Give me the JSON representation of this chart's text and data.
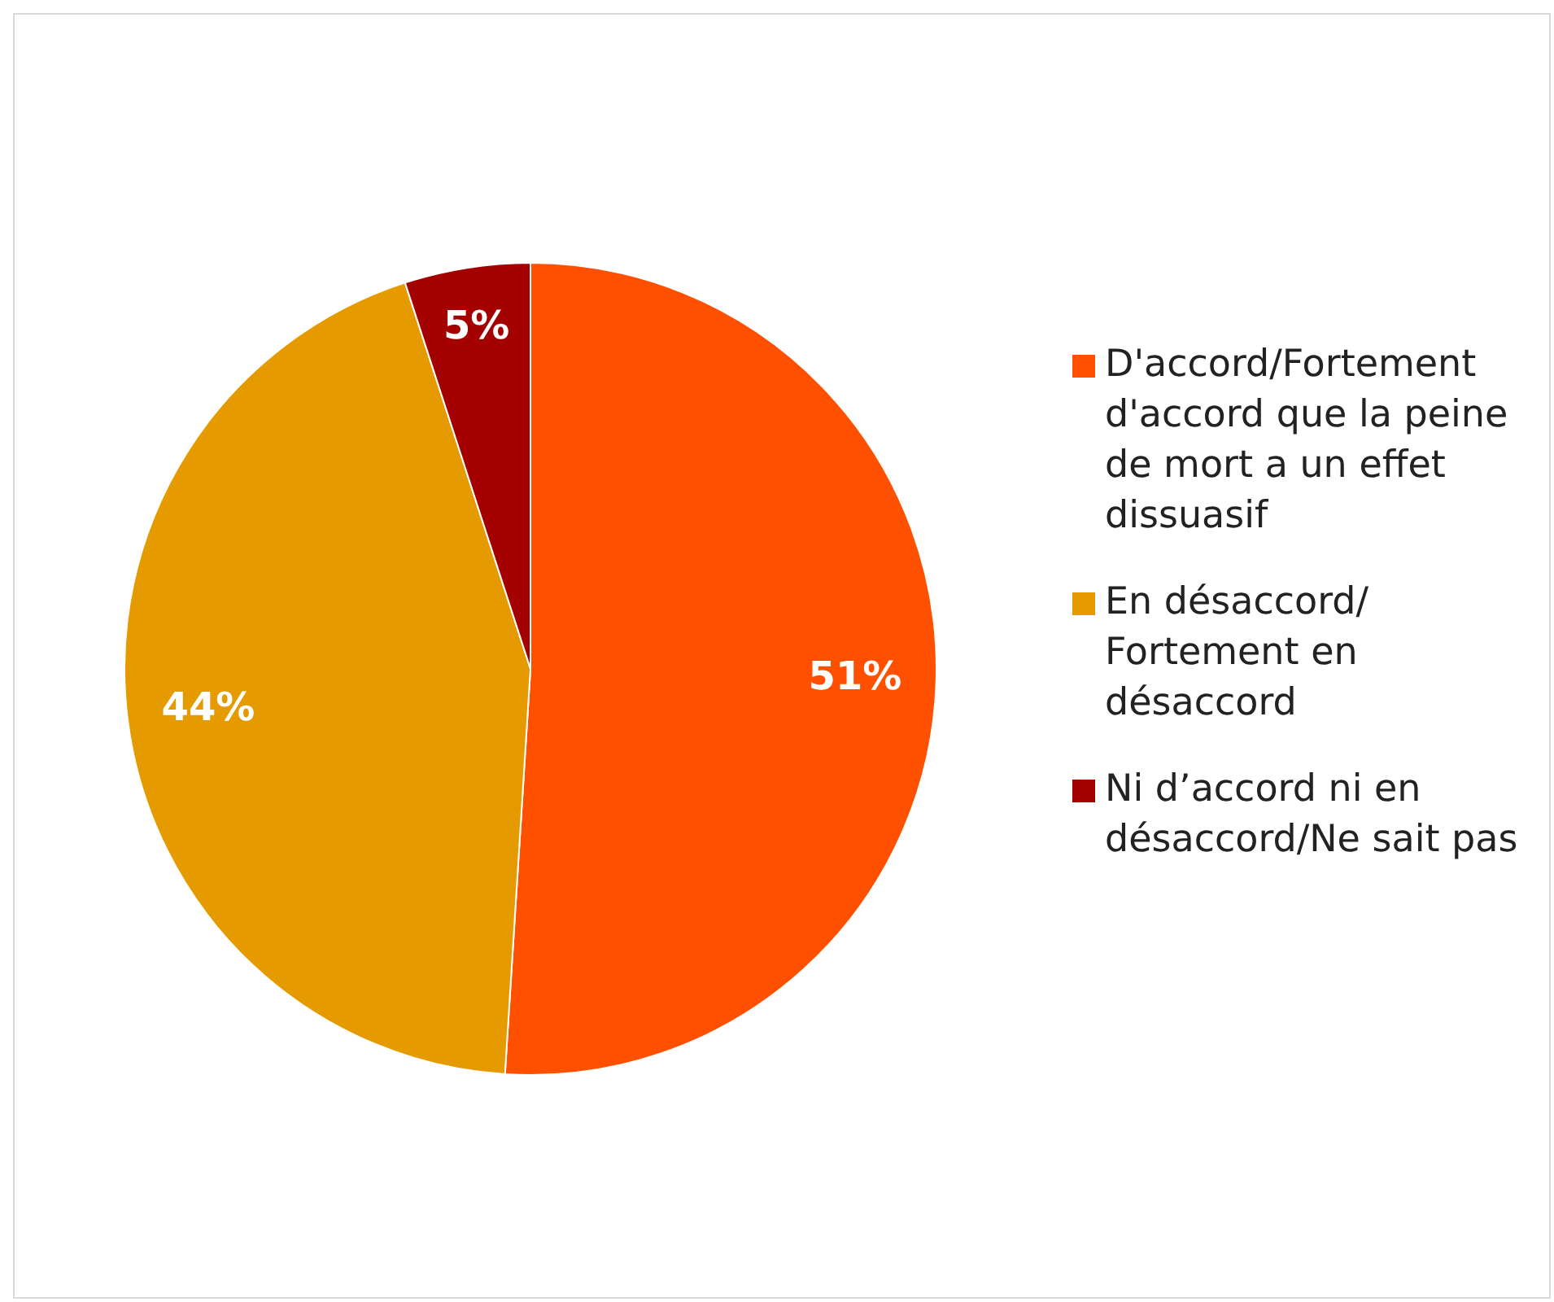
{
  "chart_data": {
    "type": "pie",
    "categories": [
      "D'accord/Fortement d'accord que la peine de mort a un effet dissuasif",
      "En désaccord/ Fortement en désaccord",
      "Ni d’accord ni en désaccord/Ne sait pas"
    ],
    "values": [
      51,
      44,
      5
    ],
    "colors": [
      "#ff5000",
      "#e59b00",
      "#a50000"
    ],
    "value_labels": [
      "51%",
      "44%",
      "5%"
    ],
    "legend": "right"
  }
}
